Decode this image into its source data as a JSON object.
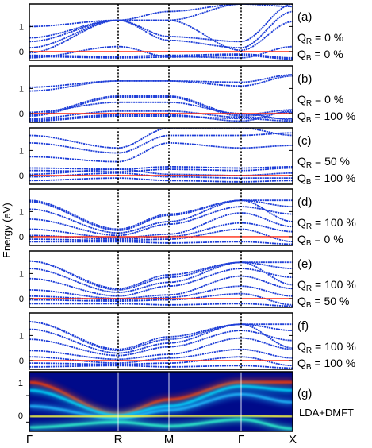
{
  "chart_data": {
    "type": "line",
    "ylabel": "Energy (eV)",
    "x_ticks": [
      "Γ",
      "R",
      "M",
      "Γ",
      "X"
    ],
    "y_ticks": [
      "0",
      "1"
    ],
    "y_range": [
      -0.35,
      1.9
    ],
    "fermi_level": 0,
    "colors": {
      "bands": "#1f3fd8",
      "fermi": "#ff2a10",
      "frame": "#000000"
    },
    "panels": [
      {
        "tag": "(a)",
        "qr_label": "Q",
        "qr_sub": "R",
        "qr_value": " = 0 %",
        "qb_label": "Q",
        "qb_sub": "B",
        "qb_value": " = 0 %"
      },
      {
        "tag": "(b)",
        "qr_label": "Q",
        "qr_sub": "R",
        "qr_value": " = 0 %",
        "qb_label": "Q",
        "qb_sub": "B",
        "qb_value": " = 100 %"
      },
      {
        "tag": "(c)",
        "qr_label": "Q",
        "qr_sub": "R",
        "qr_value": " = 50 %",
        "qb_label": "Q",
        "qb_sub": "B",
        "qb_value": " = 100 %"
      },
      {
        "tag": "(d)",
        "qr_label": "Q",
        "qr_sub": "R",
        "qr_value": " = 100 %",
        "qb_label": "Q",
        "qb_sub": "B",
        "qb_value": " = 0 %"
      },
      {
        "tag": "(e)",
        "qr_label": "Q",
        "qr_sub": "R",
        "qr_value": " = 100 %",
        "qb_label": "Q",
        "qb_sub": "B",
        "qb_value": " = 50 %"
      },
      {
        "tag": "(f)",
        "qr_label": "Q",
        "qr_sub": "R",
        "qr_value": " = 100 %",
        "qb_label": "Q",
        "qb_sub": "B",
        "qb_value": " = 100 %"
      }
    ],
    "heatmap_panel": {
      "tag": "(g)",
      "label": "LDA+DMFT"
    }
  }
}
